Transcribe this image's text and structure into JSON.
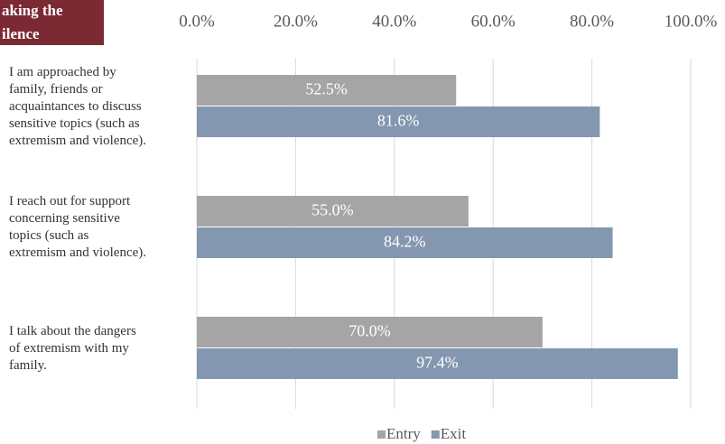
{
  "chart_data": {
    "type": "hbar",
    "title_lines": [
      "aking the",
      "ilence"
    ],
    "categories": [
      "I am approached by\nfamily, friends or\nacquaintances to discuss\nsensitive topics (such as\nextremism and violence).",
      "I reach out for support\nconcerning sensitive\ntopics (such as\nextremism and violence).",
      "I talk about the dangers\nof extremism with my\nfamily."
    ],
    "series": [
      {
        "name": "Entry",
        "color": "#a5a5a5",
        "values": [
          52.5,
          55.0,
          70.0
        ],
        "value_labels": [
          "52.5%",
          "55.0%",
          "70.0%"
        ]
      },
      {
        "name": "Exit",
        "color": "#8497b0",
        "values": [
          81.6,
          84.2,
          97.4
        ],
        "value_labels": [
          "81.6%",
          "84.2%",
          "97.4%"
        ]
      }
    ],
    "xlim": [
      0,
      100
    ],
    "xticks": [
      {
        "value": 0,
        "label": "0.0%"
      },
      {
        "value": 20,
        "label": "20.0%"
      },
      {
        "value": 40,
        "label": "40.0%"
      },
      {
        "value": 60,
        "label": "60.0%"
      },
      {
        "value": 80,
        "label": "80.0%"
      },
      {
        "value": 100,
        "label": "100.0%"
      }
    ],
    "grid": true,
    "legend": "bottom"
  }
}
